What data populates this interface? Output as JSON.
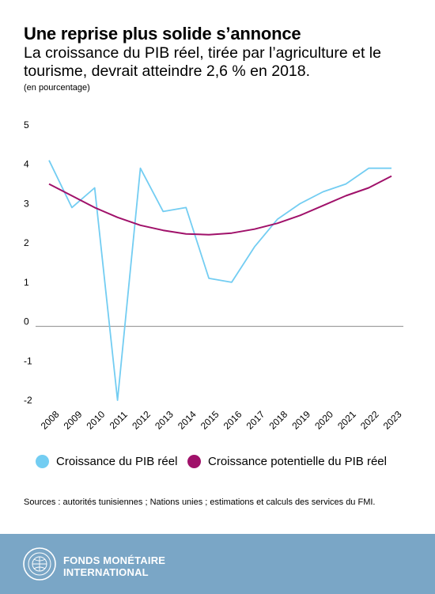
{
  "header": {
    "title": "Une reprise plus solide s’annonce",
    "subtitle": "La croissance du PIB réel, tirée par l’agriculture et le tourisme, devrait atteindre 2,6 % en 2018.",
    "unit": "(en pourcentage)"
  },
  "chart_data": {
    "type": "line",
    "categories": [
      "2008",
      "2009",
      "2010",
      "2011",
      "2012",
      "2013",
      "2014",
      "2015",
      "2016",
      "2017",
      "2018",
      "2019",
      "2020",
      "2021",
      "2022",
      "2023"
    ],
    "ylim": [
      -2,
      5
    ],
    "yticks": [
      "5",
      "4",
      "3",
      "2",
      "1",
      "0",
      "-1",
      "-2"
    ],
    "ytick_values": [
      5,
      4,
      3,
      2,
      1,
      0,
      -1,
      -2
    ],
    "grid": false,
    "legend_position": "bottom",
    "series": [
      {
        "name": "Croissance du PIB réel",
        "color": "#73cdf2",
        "values": [
          4.1,
          2.9,
          3.4,
          -2.0,
          3.9,
          2.8,
          2.9,
          1.1,
          1.0,
          1.9,
          2.6,
          3.0,
          3.3,
          3.5,
          3.9,
          3.9
        ]
      },
      {
        "name": "Croissance potentielle du PIB réel",
        "color": "#a0116a",
        "values": [
          3.5,
          3.2,
          2.9,
          2.65,
          2.45,
          2.32,
          2.23,
          2.21,
          2.25,
          2.35,
          2.5,
          2.7,
          2.95,
          3.2,
          3.4,
          3.7
        ]
      }
    ]
  },
  "source": "Sources : autorités tunisiennes ; Nations unies ; estimations et calculs des services du FMI.",
  "footer": {
    "org_line1": "FONDS MONÉTAIRE",
    "org_line2": "INTERNATIONAL",
    "background": "#7aa6c6"
  }
}
